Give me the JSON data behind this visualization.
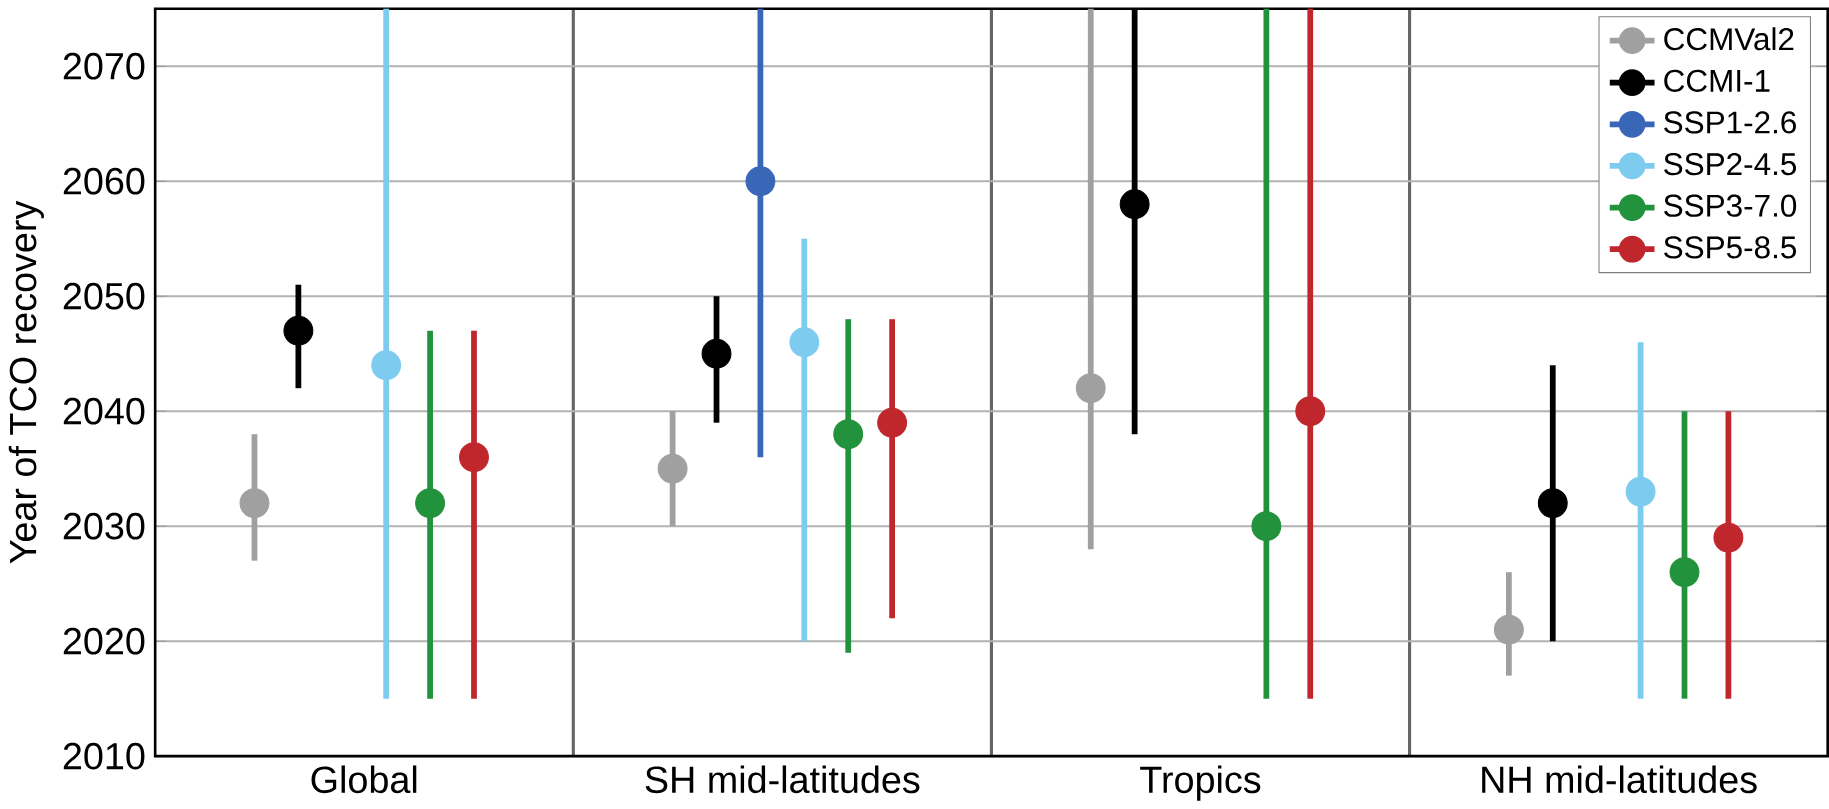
{
  "chart_data": {
    "type": "scatter",
    "ylabel": "Year of TCO recovery",
    "categories": [
      "Global",
      "SH mid-latitudes",
      "Tropics",
      "NH mid-latitudes"
    ],
    "series": [
      {
        "name": "CCMVal2",
        "color": "#a0a0a0",
        "values": [
          2032,
          2035,
          2042,
          2021
        ],
        "errors": [
          [
            2027,
            2038
          ],
          [
            2030,
            2040
          ],
          [
            2028,
            2075
          ],
          [
            2017,
            2026
          ]
        ]
      },
      {
        "name": "CCMI-1",
        "color": "#000000",
        "values": [
          2047,
          2045,
          2058,
          2032
        ],
        "errors": [
          [
            2042,
            2051
          ],
          [
            2039,
            2050
          ],
          [
            2038,
            2075
          ],
          [
            2020,
            2044
          ]
        ]
      },
      {
        "name": "SSP1-2.6",
        "color": "#3a66b8",
        "values": [
          null,
          2060,
          null,
          null
        ],
        "errors": [
          null,
          [
            2036,
            2075
          ],
          null,
          null
        ]
      },
      {
        "name": "SSP2-4.5",
        "color": "#7ecbf0",
        "values": [
          2044,
          2046,
          null,
          2033
        ],
        "errors": [
          [
            2015,
            2075
          ],
          [
            2020,
            2055
          ],
          null,
          [
            2015,
            2046
          ]
        ]
      },
      {
        "name": "SSP3-7.0",
        "color": "#22923c",
        "values": [
          2032,
          2038,
          2030,
          2026
        ],
        "errors": [
          [
            2015,
            2047
          ],
          [
            2019,
            2048
          ],
          [
            2015,
            2075
          ],
          [
            2015,
            2040
          ]
        ]
      },
      {
        "name": "SSP5-8.5",
        "color": "#c0272d",
        "values": [
          2036,
          2039,
          2040,
          2029
        ],
        "errors": [
          [
            2015,
            2047
          ],
          [
            2022,
            2048
          ],
          [
            2015,
            2075
          ],
          [
            2015,
            2040
          ]
        ]
      }
    ],
    "ylim": [
      2010,
      2075
    ],
    "yticks": [
      2010,
      2020,
      2030,
      2040,
      2050,
      2060,
      2070
    ],
    "grid": true,
    "legend": "top right",
    "marker": "circle"
  }
}
